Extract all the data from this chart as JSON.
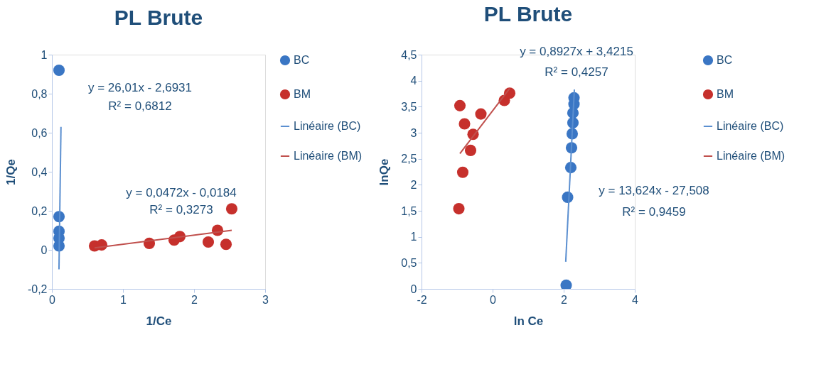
{
  "chart_data": [
    {
      "type": "scatter",
      "title": "PL Brute",
      "xlabel": "1/Ce",
      "ylabel": "1/Qe",
      "xlim": [
        0,
        3
      ],
      "ylim": [
        -0.2,
        1
      ],
      "xticks": [
        0,
        1,
        2,
        3
      ],
      "yticks": [
        {
          "value": -0.2,
          "label": "-0,2"
        },
        0,
        {
          "value": 0.2,
          "label": "0,2"
        },
        {
          "value": 0.4,
          "label": "0,4"
        },
        {
          "value": 0.6,
          "label": "0,6"
        },
        {
          "value": 0.8,
          "label": "0,8"
        },
        1
      ],
      "grid": false,
      "legend": "right",
      "marker": "circle",
      "annotations": [
        "y = 26,01x - 2,6931",
        "R² = 0,6812",
        "y = 0,0472x - 0,0184",
        "R² = 0,3273"
      ],
      "series": [
        {
          "name": "BC",
          "type": "scatter",
          "color": "#3a76c4",
          "x": [
            0.1,
            0.1,
            0.1,
            0.1,
            0.1
          ],
          "values": [
            0.92,
            0.17,
            0.095,
            0.06,
            0.02
          ]
        },
        {
          "name": "BM",
          "type": "scatter",
          "color": "#c6302c",
          "x": [
            0.6,
            0.7,
            1.37,
            1.72,
            1.8,
            2.2,
            2.33,
            2.45,
            2.53
          ],
          "values": [
            0.02,
            0.025,
            0.033,
            0.05,
            0.068,
            0.04,
            0.1,
            0.028,
            0.21
          ]
        },
        {
          "name": "Linéaire (BC)",
          "type": "line",
          "marker": "none",
          "color": "#5b8fd0",
          "x": [
            0.0997,
            0.1278
          ],
          "values": [
            -0.1,
            0.63
          ]
        },
        {
          "name": "Linéaire (BM)",
          "type": "line",
          "marker": "none",
          "color": "#c0504d",
          "x": [
            0.6,
            2.53
          ],
          "values": [
            0.01,
            0.1
          ]
        }
      ]
    },
    {
      "type": "scatter",
      "title": "PL Brute",
      "xlabel": "ln Ce",
      "ylabel": "lnQe",
      "xlim": [
        -2,
        4
      ],
      "ylim": [
        0,
        4.5
      ],
      "xticks": [
        -2,
        0,
        2,
        4
      ],
      "yticks": [
        0,
        {
          "value": 0.5,
          "label": "0,5"
        },
        1,
        {
          "value": 1.5,
          "label": "1,5"
        },
        2,
        {
          "value": 2.5,
          "label": "2,5"
        },
        3,
        {
          "value": 3.5,
          "label": "3,5"
        },
        4,
        {
          "value": 4.5,
          "label": "4,5"
        }
      ],
      "grid": false,
      "legend": "right",
      "marker": "circle",
      "annotations": [
        "y = 0,8927x + 3,4215",
        "R² = 0,4257",
        "y = 13,624x - 27,508",
        "R² = 0,9459"
      ],
      "series": [
        {
          "name": "BC",
          "type": "scatter",
          "color": "#3a76c4",
          "x": [
            2.07,
            2.11,
            2.2,
            2.22,
            2.24,
            2.26,
            2.26,
            2.29,
            2.29
          ],
          "values": [
            0.07,
            1.76,
            2.33,
            2.71,
            2.98,
            3.19,
            3.38,
            3.55,
            3.67
          ]
        },
        {
          "name": "BM",
          "type": "scatter",
          "color": "#c6302c",
          "x": [
            -0.92,
            -0.79,
            -0.33,
            -0.55,
            -0.62,
            -0.84,
            -0.95,
            0.33,
            0.48
          ],
          "values": [
            3.52,
            3.17,
            3.36,
            2.97,
            2.66,
            2.24,
            1.54,
            3.62,
            3.76
          ]
        },
        {
          "name": "Linéaire (BC)",
          "type": "line",
          "marker": "none",
          "color": "#5b8fd0",
          "x": [
            2.057,
            2.3
          ],
          "values": [
            0.52,
            3.83
          ]
        },
        {
          "name": "Linéaire (BM)",
          "type": "line",
          "marker": "none",
          "color": "#c0504d",
          "x": [
            -0.92,
            0.48
          ],
          "values": [
            2.6,
            3.85
          ]
        }
      ]
    }
  ]
}
